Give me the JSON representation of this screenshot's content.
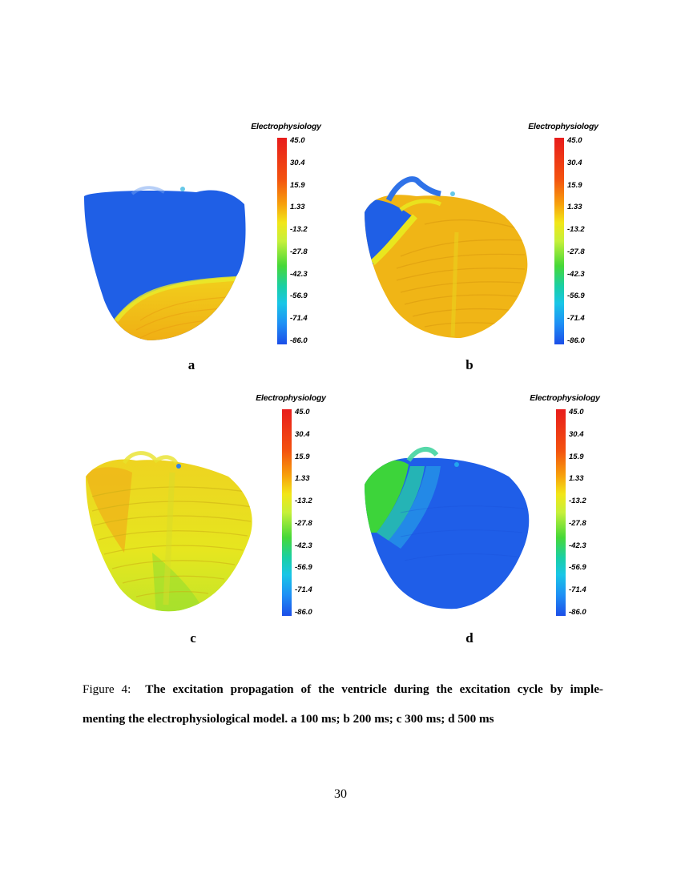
{
  "legend": {
    "title": "Electrophysiology",
    "ticks": [
      "45.0",
      "30.4",
      "15.9",
      "1.33",
      "-13.2",
      "-27.8",
      "-42.3",
      "-56.9",
      "-71.4",
      "-86.0"
    ]
  },
  "panels": [
    {
      "label": "a"
    },
    {
      "label": "b"
    },
    {
      "label": "c"
    },
    {
      "label": "d"
    }
  ],
  "caption": {
    "prefix": "Figure 4:",
    "line1": "The excitation propagation of the ventricle during the excitation cycle by imple-",
    "line2": "menting the electrophysiological model. a 100 ms; b 200 ms; c 300 ms; d 500 ms"
  },
  "page_number": "30",
  "colors": {
    "blue": "#1f63e8",
    "yellow_orange": "#f0b812",
    "yellow": "#e9e41a",
    "green": "#3ad43c",
    "cyan": "#2cc7d6"
  }
}
